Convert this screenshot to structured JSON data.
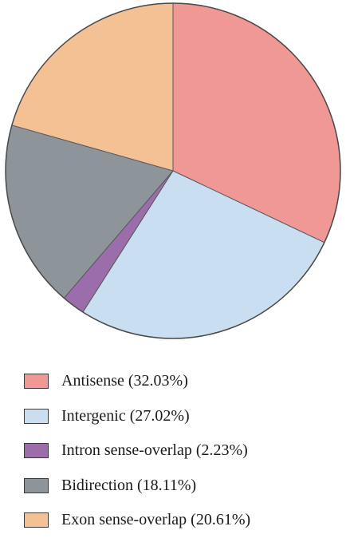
{
  "chart_data": {
    "type": "pie",
    "title": "",
    "categories": [
      "Antisense",
      "Intergenic",
      "Intron sense-overlap",
      "Bidirection",
      "Exon sense-overlap"
    ],
    "values": [
      32.03,
      27.02,
      2.23,
      18.11,
      20.61
    ],
    "unit": "%",
    "colors": [
      "#ef9896",
      "#c9dff1",
      "#9b6dab",
      "#8d959b",
      "#f4c195"
    ],
    "start_angle": "12 o'clock",
    "direction": "clockwise",
    "legend_position": "bottom",
    "legend_labels": [
      "Antisense (32.03%)",
      "Intergenic (27.02%)",
      "Intron sense-overlap (2.23%)",
      "Bidirection (18.11%)",
      "Exon sense-overlap (20.61%)"
    ]
  }
}
